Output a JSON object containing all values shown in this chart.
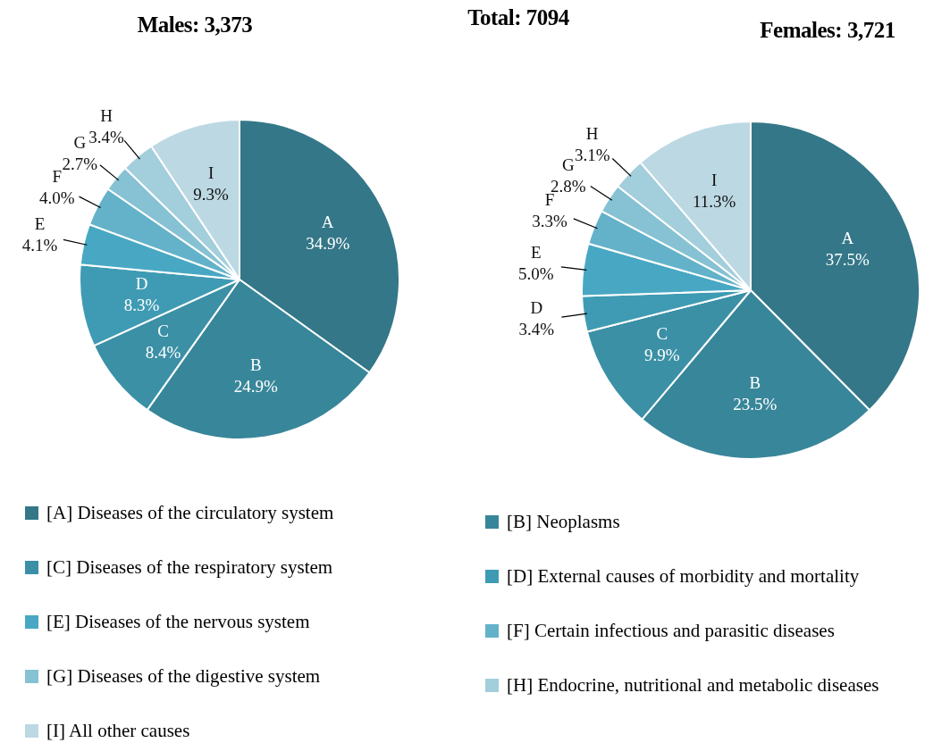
{
  "chart_data": [
    {
      "type": "pie",
      "title": "Males: 3,373",
      "annotations": [
        "Total: 7094"
      ],
      "legend": "bottom",
      "categories": [
        "[A] Diseases of the circulatory system",
        "[B] Neoplasms",
        "[C] Diseases of the respiratory system",
        "[D] External causes of morbidity and mortality",
        "[E] Diseases of the nervous system",
        "[F] Certain infectious and parasitic diseases",
        "[G] Diseases of the digestive system",
        "[H] Endocrine, nutritional and metabolic diseases",
        "[I] All other causes"
      ],
      "values": [
        34.9,
        24.9,
        8.4,
        8.3,
        4.1,
        4.0,
        2.7,
        3.4,
        9.3
      ],
      "value_labels": [
        "A\n34.9%",
        "B\n24.9%",
        "C\n8.4%",
        "D\n8.3%",
        "E\n4.1%",
        "F\n4.0%",
        "G\n2.7%",
        "H\n3.4%",
        "I\n9.3%"
      ],
      "colors": [
        "#347788",
        "#38869a",
        "#3b90a6",
        "#3f9bb3",
        "#48a8c3",
        "#63b2c9",
        "#86c2d3",
        "#a3cedb",
        "#bcd9e3"
      ]
    },
    {
      "type": "pie",
      "title": "Females: 3,721",
      "categories": [
        null,
        null,
        null,
        null,
        null,
        null,
        null,
        null,
        null
      ],
      "values": [
        37.5,
        23.5,
        9.9,
        3.4,
        5.0,
        3.3,
        2.8,
        3.1,
        11.3
      ],
      "value_labels": [
        "A\n37.5%",
        "B\n23.5%",
        "C\n9.9%",
        "D\n3.4%",
        "E\n5.0%",
        "F\n3.3%",
        "G\n2.8%",
        "H\n3.1%",
        "I\n11.3%"
      ],
      "colors": [
        "#347788",
        "#38869a",
        "#3b90a6",
        "#3f9bb3",
        "#48a8c3",
        "#63b2c9",
        "#86c2d3",
        "#a3cedb",
        "#bcd9e3"
      ]
    }
  ]
}
